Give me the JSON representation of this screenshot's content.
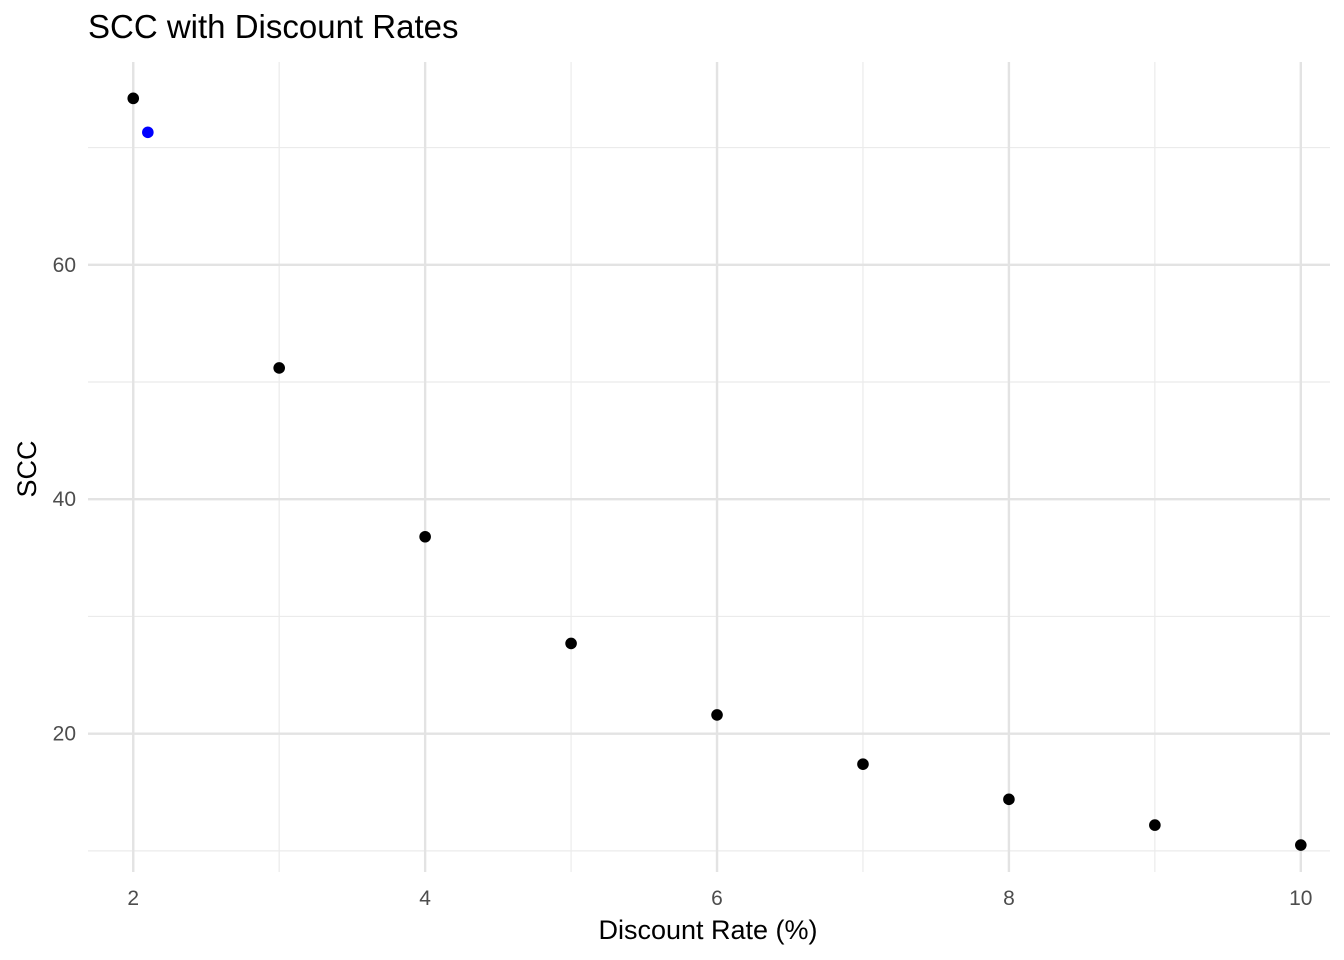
{
  "chart_data": {
    "type": "scatter",
    "title": "SCC with Discount Rates",
    "xlabel": "Discount Rate (%)",
    "ylabel": "SCC",
    "xlim": [
      1.69,
      10.2
    ],
    "ylim": [
      8.2,
      77.3
    ],
    "x_ticks": [
      2,
      4,
      6,
      8,
      10
    ],
    "x_tick_labels": [
      "2",
      "4",
      "6",
      "8",
      "10"
    ],
    "x_minor_ticks": [
      3,
      5,
      7,
      9
    ],
    "y_ticks": [
      20,
      40,
      60
    ],
    "y_tick_labels": [
      "20",
      "40",
      "60"
    ],
    "y_minor_ticks": [
      10,
      30,
      50,
      70
    ],
    "grid": true,
    "legend": "none",
    "series": [
      {
        "color": "#000000",
        "points": [
          {
            "x": 2,
            "y": 74.2
          },
          {
            "x": 3,
            "y": 51.2
          },
          {
            "x": 4,
            "y": 36.8
          },
          {
            "x": 5,
            "y": 27.7
          },
          {
            "x": 6,
            "y": 21.6
          },
          {
            "x": 7,
            "y": 17.4
          },
          {
            "x": 8,
            "y": 14.4
          },
          {
            "x": 9,
            "y": 12.2
          },
          {
            "x": 10,
            "y": 10.5
          }
        ]
      },
      {
        "color": "#0000ff",
        "points": [
          {
            "x": 2.1,
            "y": 71.3
          }
        ]
      }
    ]
  }
}
